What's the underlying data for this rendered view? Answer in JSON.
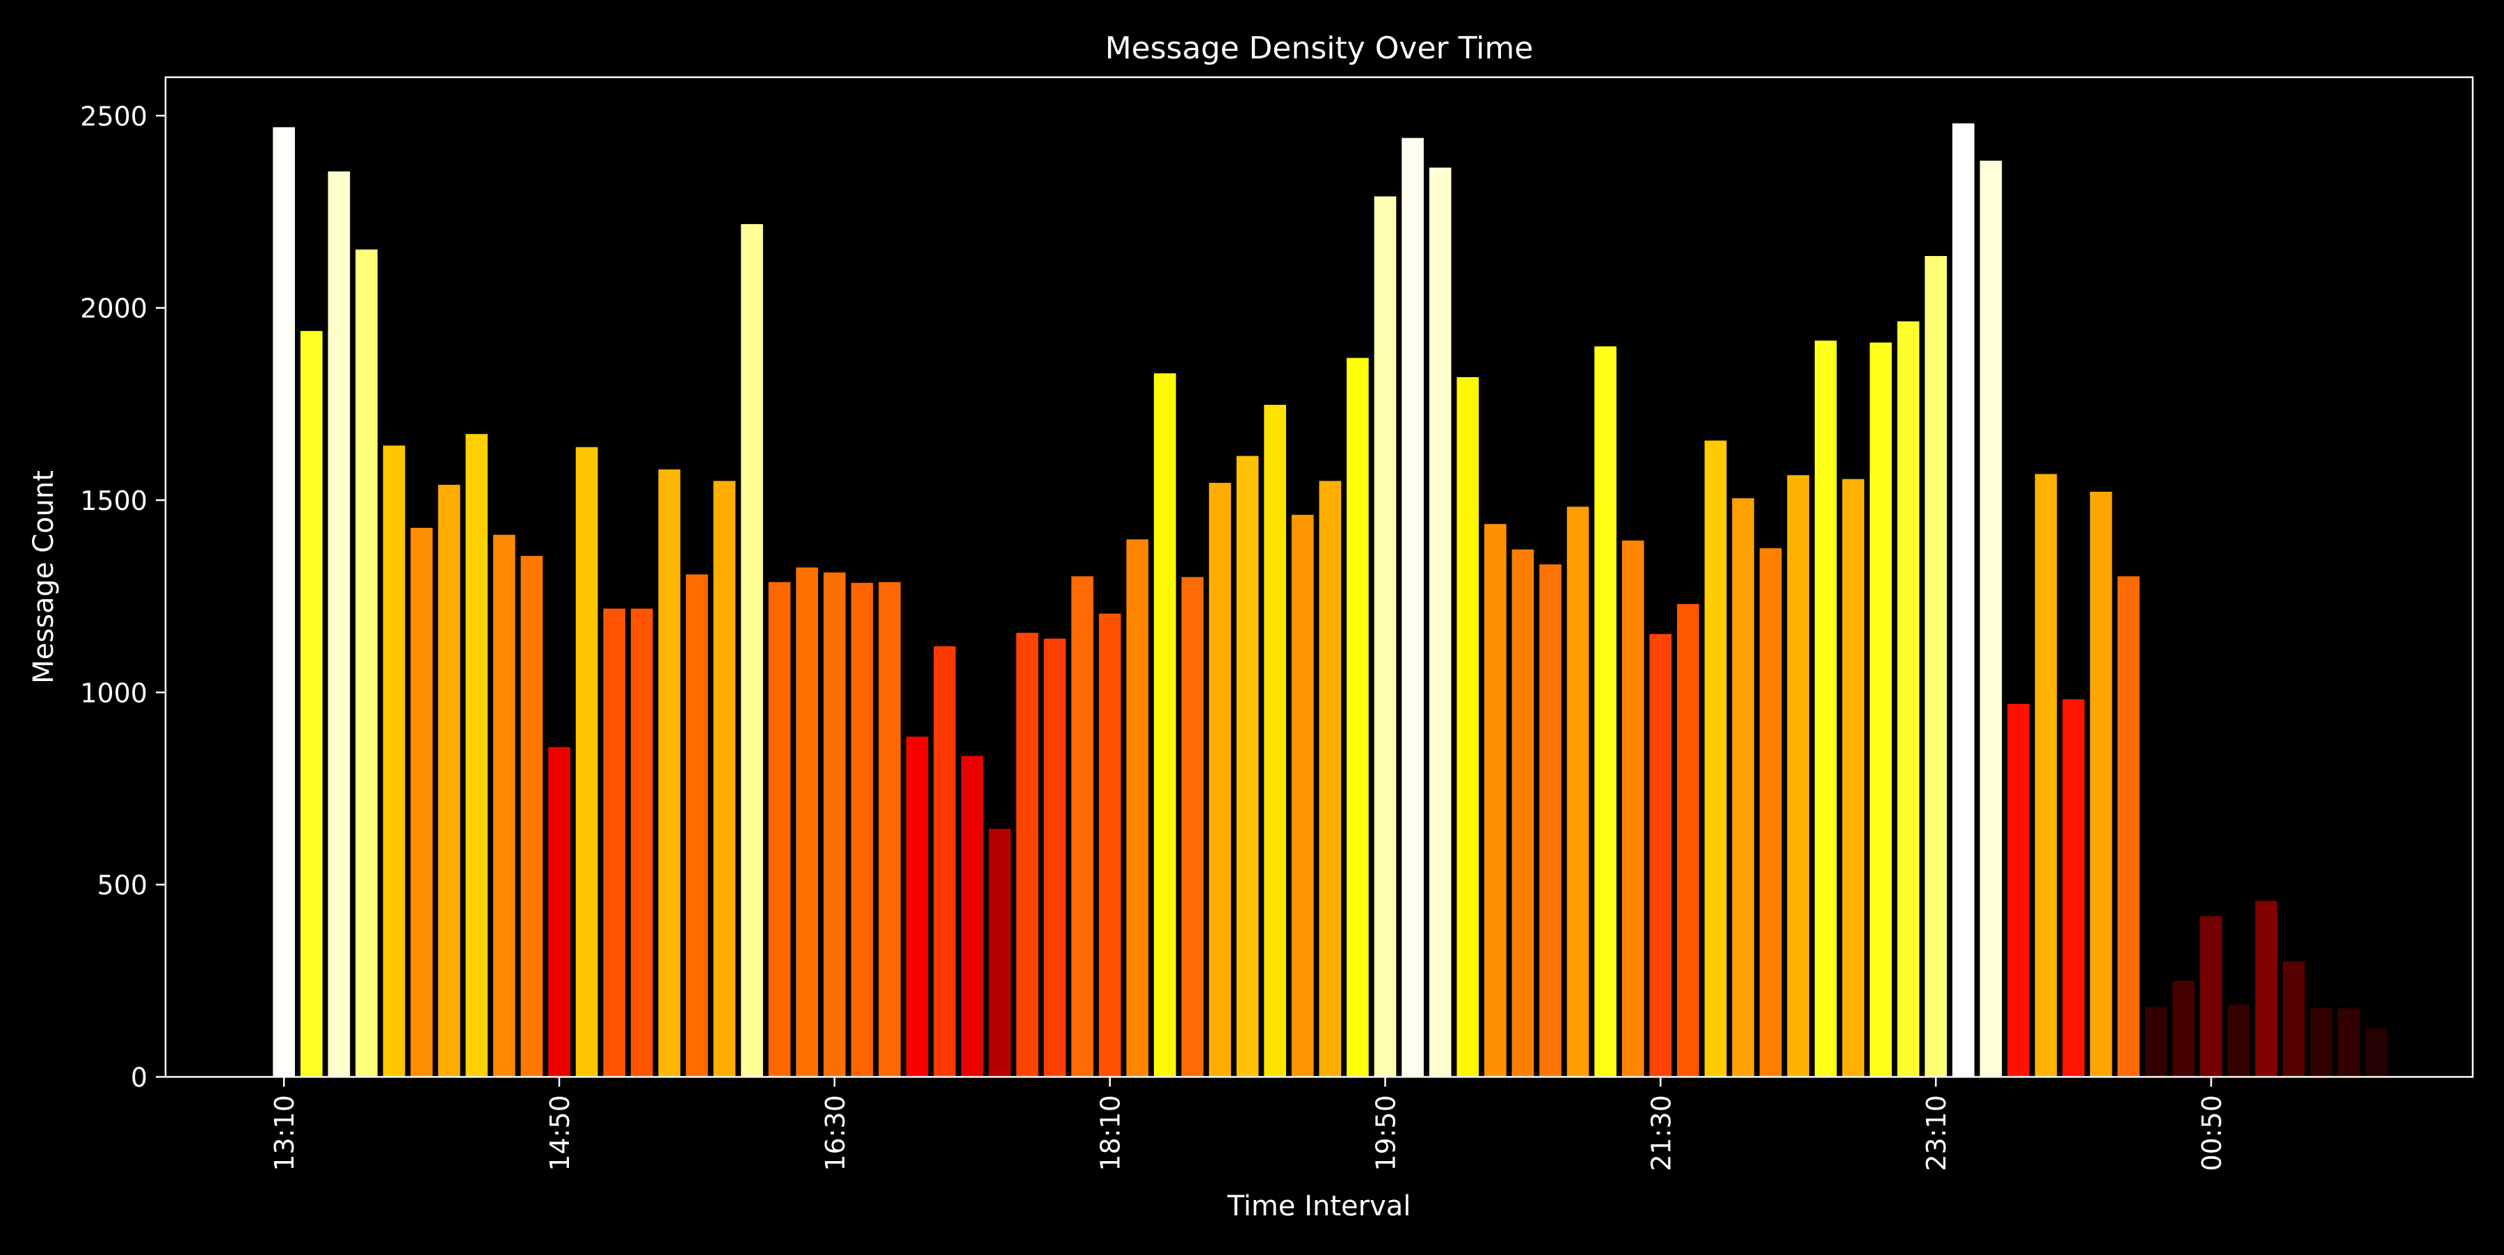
{
  "chart_data": {
    "type": "bar",
    "title": "Message Density Over Time",
    "xlabel": "Time Interval",
    "ylabel": "Message Count",
    "ylim": [
      0,
      2600
    ],
    "xlim": [
      -4.3,
      79.5
    ],
    "yticks": [
      0,
      500,
      1000,
      1500,
      2000,
      2500
    ],
    "xticks": [
      {
        "index": 0,
        "label": "13:10"
      },
      {
        "index": 10,
        "label": "14:50"
      },
      {
        "index": 20,
        "label": "16:30"
      },
      {
        "index": 30,
        "label": "18:10"
      },
      {
        "index": 40,
        "label": "19:50"
      },
      {
        "index": 50,
        "label": "21:30"
      },
      {
        "index": 60,
        "label": "23:10"
      },
      {
        "index": 70,
        "label": "00:50"
      }
    ],
    "values": [
      2470,
      1940,
      2355,
      2152,
      1642,
      1428,
      1540,
      1672,
      1410,
      1355,
      858,
      1638,
      1218,
      1218,
      1580,
      1307,
      1550,
      2218,
      1287,
      1325,
      1312,
      1285,
      1287,
      885,
      1120,
      835,
      645,
      1155,
      1140,
      1302,
      1205,
      1398,
      1830,
      1300,
      1545,
      1615,
      1748,
      1462,
      1550,
      1870,
      2290,
      2442,
      2365,
      1820,
      1438,
      1372,
      1333,
      1483,
      1900,
      1395,
      1152,
      1230,
      1655,
      1505,
      1375,
      1565,
      1915,
      1555,
      1910,
      1965,
      2135,
      2480,
      2383,
      970,
      1568,
      982,
      1522,
      1302,
      182,
      250,
      418,
      188,
      458,
      300,
      180,
      178,
      128
    ],
    "colorscale": "hot",
    "background": "#000000",
    "foreground": "#ffffff",
    "grid": false,
    "legend": "none"
  }
}
